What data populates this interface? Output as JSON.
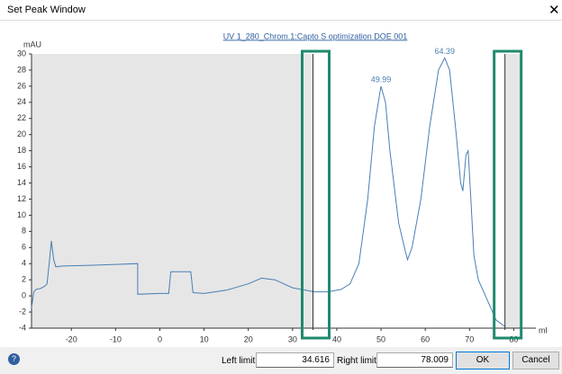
{
  "window": {
    "title": "Set Peak Window"
  },
  "chart_data": {
    "type": "line",
    "legend": "UV 1_280_Chrom.1:Capto S optimization DOE 001",
    "y_label": "mAU",
    "x_label": "ml",
    "xlim": [
      -29,
      85
    ],
    "ylim": [
      -4,
      30
    ],
    "xticks": [
      -20,
      -10,
      0,
      10,
      20,
      30,
      40,
      50,
      60,
      70,
      80
    ],
    "yticks": [
      -4,
      -2,
      0,
      2,
      4,
      6,
      8,
      10,
      12,
      14,
      16,
      18,
      20,
      22,
      24,
      26,
      28,
      30
    ],
    "series": [
      {
        "name": "UV 1_280_Chrom.1",
        "color": "#4a7fb5",
        "x": [
          -29,
          -28.5,
          -28,
          -27,
          -26,
          -25.5,
          -25,
          -24.5,
          -24,
          -23.5,
          -22,
          -15,
          -10,
          -5,
          -5,
          0,
          2,
          2.5,
          7,
          7.5,
          10,
          15,
          20,
          23,
          26,
          30,
          35,
          38,
          41,
          43,
          45,
          47,
          48.5,
          49.99,
          51,
          52,
          54,
          55.5,
          56,
          57,
          59,
          61,
          63,
          64.39,
          65.5,
          67,
          68,
          68.5,
          69.2,
          69.7,
          70.3,
          71,
          72,
          74,
          76,
          78
        ],
        "values": [
          -1.5,
          0.5,
          0.8,
          0.9,
          1.2,
          1.5,
          4,
          6.8,
          4.5,
          3.6,
          3.7,
          3.8,
          3.9,
          4,
          0.2,
          0.3,
          0.3,
          3,
          3,
          0.4,
          0.3,
          0.7,
          1.5,
          2.2,
          2,
          1,
          0.5,
          0.5,
          0.8,
          1.5,
          4,
          12,
          21,
          26,
          24,
          18,
          9,
          5.5,
          4.5,
          6,
          12,
          21,
          28,
          29.5,
          28,
          20,
          14,
          13,
          17.5,
          18,
          12,
          5,
          2,
          -0.5,
          -3,
          -3.8
        ]
      }
    ],
    "peak_labels": [
      49.99,
      64.39
    ]
  },
  "form": {
    "left_limit": {
      "label": "Left limit:",
      "value": 34.616
    },
    "right_limit": {
      "label": "Right limit:",
      "value": 78.009
    },
    "ok": "OK",
    "cancel": "Cancel"
  }
}
